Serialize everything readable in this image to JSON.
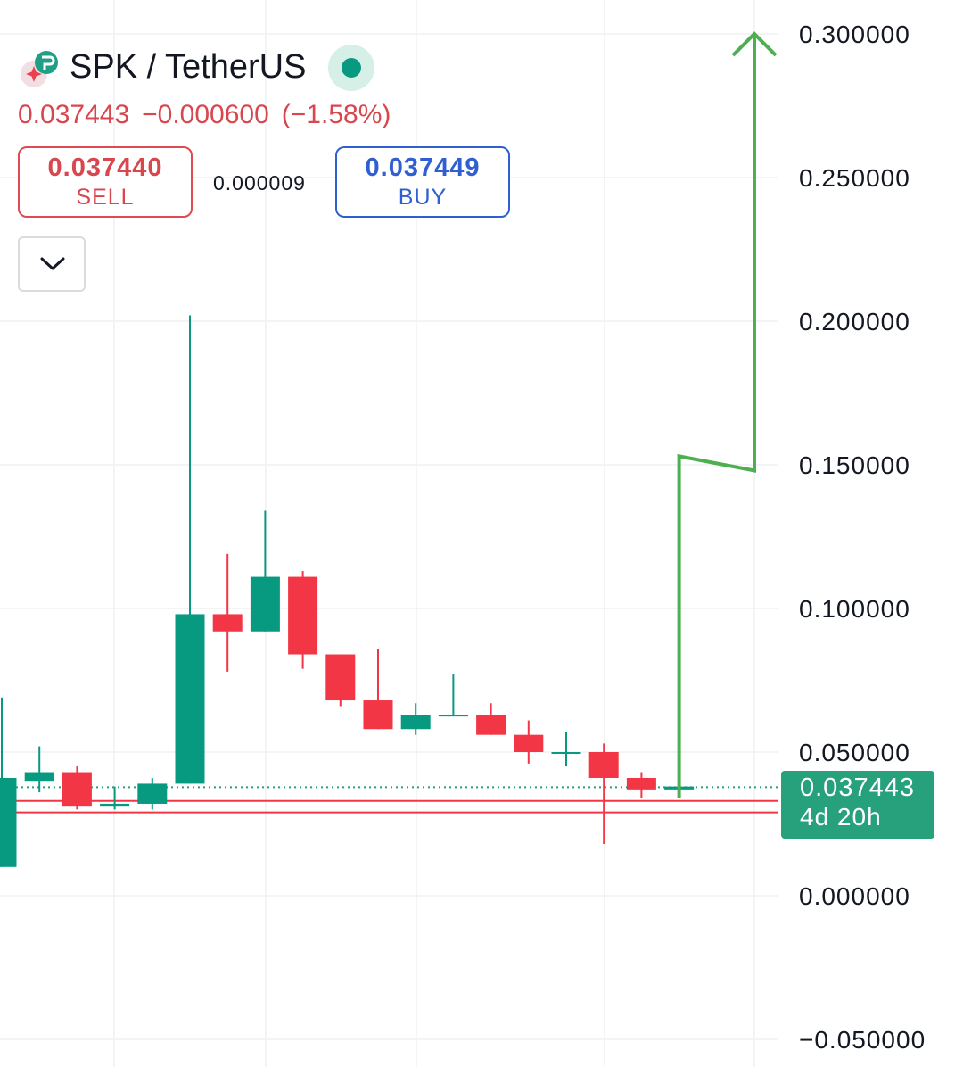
{
  "header": {
    "symbol_title": "SPK / TetherUS",
    "last_price": "0.037443",
    "change": "−0.000600",
    "change_percent": "(−1.58%)",
    "logo_icon": "spark-logo-icon",
    "status": "market-open"
  },
  "trade": {
    "sell_price": "0.037440",
    "sell_label": "SELL",
    "spread": "0.000009",
    "buy_price": "0.037449",
    "buy_label": "BUY"
  },
  "price_tag": {
    "price": "0.037443",
    "countdown": "4d 20h"
  },
  "colors": {
    "up": "#089981",
    "down": "#f23645",
    "drawing": "#4caf50",
    "sell": "#d8464e",
    "buy": "#2f5fd0",
    "tag": "#26a17b"
  },
  "chart_data": {
    "type": "candlestick",
    "y_ticks": [
      "0.300000",
      "0.250000",
      "0.200000",
      "0.150000",
      "0.100000",
      "0.050000",
      "0.000000",
      "−0.050000"
    ],
    "y_tick_values": [
      0.3,
      0.25,
      0.2,
      0.15,
      0.1,
      0.05,
      0.0,
      -0.05
    ],
    "ylim": [
      -0.05,
      0.3
    ],
    "grid": true,
    "last_price": 0.037443,
    "candles": [
      {
        "open": 0.01,
        "high": 0.069,
        "low": 0.01,
        "close": 0.041
      },
      {
        "open": 0.04,
        "high": 0.052,
        "low": 0.036,
        "close": 0.043
      },
      {
        "open": 0.043,
        "high": 0.045,
        "low": 0.03,
        "close": 0.031
      },
      {
        "open": 0.031,
        "high": 0.038,
        "low": 0.03,
        "close": 0.032
      },
      {
        "open": 0.032,
        "high": 0.041,
        "low": 0.03,
        "close": 0.039
      },
      {
        "open": 0.039,
        "high": 0.202,
        "low": 0.039,
        "close": 0.098
      },
      {
        "open": 0.098,
        "high": 0.119,
        "low": 0.078,
        "close": 0.092
      },
      {
        "open": 0.092,
        "high": 0.134,
        "low": 0.092,
        "close": 0.111
      },
      {
        "open": 0.111,
        "high": 0.113,
        "low": 0.079,
        "close": 0.084
      },
      {
        "open": 0.084,
        "high": 0.084,
        "low": 0.066,
        "close": 0.068
      },
      {
        "open": 0.068,
        "high": 0.086,
        "low": 0.058,
        "close": 0.058
      },
      {
        "open": 0.058,
        "high": 0.067,
        "low": 0.056,
        "close": 0.063
      },
      {
        "open": 0.063,
        "high": 0.077,
        "low": 0.063,
        "close": 0.063
      },
      {
        "open": 0.063,
        "high": 0.067,
        "low": 0.056,
        "close": 0.056
      },
      {
        "open": 0.056,
        "high": 0.061,
        "low": 0.046,
        "close": 0.05
      },
      {
        "open": 0.05,
        "high": 0.057,
        "low": 0.045,
        "close": 0.05
      },
      {
        "open": 0.05,
        "high": 0.053,
        "low": 0.018,
        "close": 0.041
      },
      {
        "open": 0.041,
        "high": 0.043,
        "low": 0.034,
        "close": 0.037
      },
      {
        "open": 0.037,
        "high": 0.038,
        "low": 0.036,
        "close": 0.038
      }
    ],
    "horizontal_lines": [
      {
        "value": 0.033,
        "color": "#f23645"
      },
      {
        "value": 0.029,
        "color": "#f23645"
      }
    ],
    "drawing_path": [
      {
        "candle": 18,
        "value": 0.034
      },
      {
        "candle": 18,
        "value": 0.153
      },
      {
        "candle": 20,
        "value": 0.148
      },
      {
        "candle": 20,
        "value": 0.3
      }
    ]
  }
}
